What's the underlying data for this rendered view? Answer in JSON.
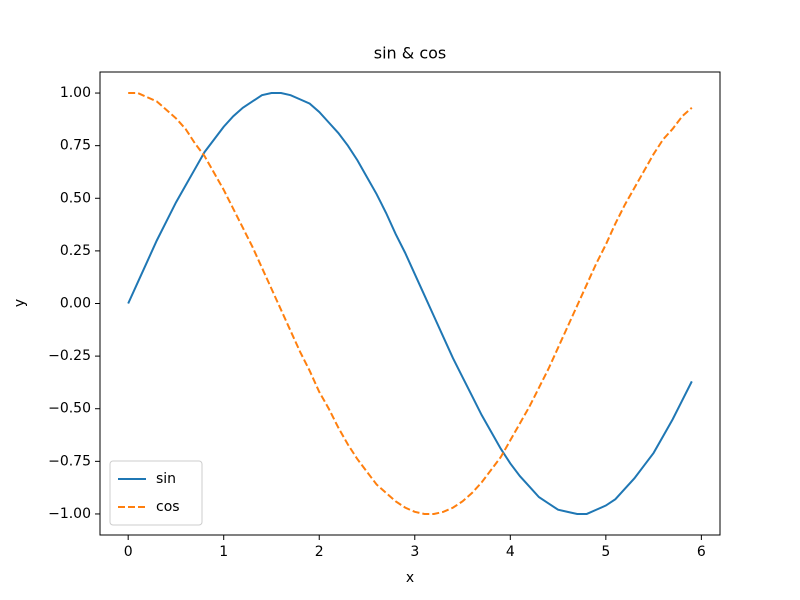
{
  "chart_data": {
    "type": "line",
    "title": "sin & cos",
    "xlabel": "x",
    "ylabel": "y",
    "x": [
      0,
      0.1,
      0.2,
      0.3,
      0.4,
      0.5,
      0.6,
      0.7,
      0.8,
      0.9,
      1.0,
      1.1,
      1.2,
      1.3,
      1.4,
      1.5,
      1.6,
      1.7,
      1.8,
      1.9,
      2.0,
      2.1,
      2.2,
      2.3,
      2.4,
      2.5,
      2.6,
      2.7,
      2.8,
      2.9,
      3.0,
      3.1,
      3.2,
      3.3,
      3.4,
      3.5,
      3.6,
      3.7,
      3.8,
      3.9,
      4.0,
      4.1,
      4.2,
      4.3,
      4.4,
      4.5,
      4.6,
      4.7,
      4.8,
      4.9,
      5.0,
      5.1,
      5.2,
      5.3,
      5.4,
      5.5,
      5.6,
      5.7,
      5.8,
      5.9
    ],
    "series": [
      {
        "name": "sin",
        "color": "#1f77b4",
        "linestyle": "solid",
        "values": [
          0,
          0.1,
          0.2,
          0.3,
          0.39,
          0.48,
          0.56,
          0.64,
          0.72,
          0.78,
          0.84,
          0.89,
          0.93,
          0.96,
          0.99,
          1.0,
          1.0,
          0.99,
          0.97,
          0.95,
          0.91,
          0.86,
          0.81,
          0.75,
          0.68,
          0.6,
          0.52,
          0.43,
          0.33,
          0.24,
          0.14,
          0.04,
          -0.06,
          -0.16,
          -0.26,
          -0.35,
          -0.44,
          -0.53,
          -0.61,
          -0.69,
          -0.76,
          -0.82,
          -0.87,
          -0.92,
          -0.95,
          -0.98,
          -0.99,
          -1.0,
          -1.0,
          -0.98,
          -0.96,
          -0.93,
          -0.88,
          -0.83,
          -0.77,
          -0.71,
          -0.63,
          -0.55,
          -0.46,
          -0.37
        ]
      },
      {
        "name": "cos",
        "color": "#ff7f0e",
        "linestyle": "dashed",
        "values": [
          1,
          1.0,
          0.98,
          0.96,
          0.92,
          0.88,
          0.83,
          0.76,
          0.7,
          0.62,
          0.54,
          0.45,
          0.36,
          0.27,
          0.17,
          0.07,
          -0.03,
          -0.13,
          -0.23,
          -0.32,
          -0.42,
          -0.5,
          -0.59,
          -0.67,
          -0.74,
          -0.8,
          -0.86,
          -0.9,
          -0.94,
          -0.97,
          -0.99,
          -1.0,
          -1.0,
          -0.99,
          -0.97,
          -0.94,
          -0.9,
          -0.85,
          -0.79,
          -0.73,
          -0.65,
          -0.57,
          -0.49,
          -0.4,
          -0.31,
          -0.21,
          -0.11,
          -0.01,
          0.09,
          0.19,
          0.28,
          0.38,
          0.47,
          0.55,
          0.63,
          0.71,
          0.78,
          0.83,
          0.89,
          0.93
        ]
      }
    ],
    "xlim": [
      -0.295,
      6.195
    ],
    "xticks": [
      0,
      1,
      2,
      3,
      4,
      5,
      6
    ],
    "ylim": [
      -1.1,
      1.1
    ],
    "yticks": [
      {
        "value": -1,
        "label": "−1.00"
      },
      {
        "value": -0.75,
        "label": "−0.75"
      },
      {
        "value": -0.5,
        "label": "−0.50"
      },
      {
        "value": -0.25,
        "label": "−0.25"
      },
      {
        "value": 0,
        "label": "0.00"
      },
      {
        "value": 0.25,
        "label": "0.25"
      },
      {
        "value": 0.5,
        "label": "0.50"
      },
      {
        "value": 0.75,
        "label": "0.75"
      },
      {
        "value": 1,
        "label": "1.00"
      }
    ],
    "grid": false,
    "legend": "lower left"
  }
}
